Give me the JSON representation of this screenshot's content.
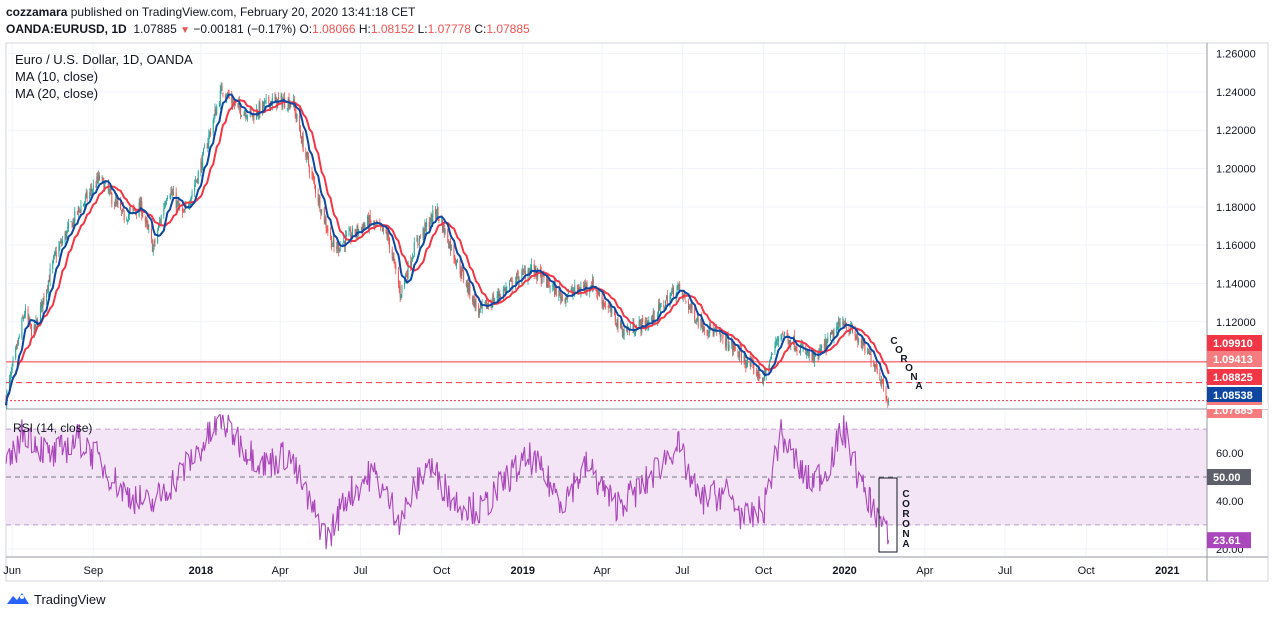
{
  "header": {
    "author": "cozzamara",
    "published_text": "published on TradingView.com, February 20, 2020 13:41:18 CET",
    "symbol": "OANDA:EURUSD, 1D",
    "last": "1.07885",
    "change": "−0.00181 (−0.17%)",
    "o_label": "O:",
    "o_value": "1.08066",
    "h_label": "H:",
    "h_value": "1.08152",
    "l_label": "L:",
    "l_value": "1.07778",
    "c_label": "C:",
    "c_value": "1.07885"
  },
  "legend": {
    "title": "Euro / U.S. Dollar, 1D, OANDA",
    "ma10": "MA (10, close)",
    "ma20": "MA (20, close)",
    "rsi": "RSI (14, close)"
  },
  "annotations": {
    "corona_price": "CORONA",
    "corona_rsi": "CORONA"
  },
  "price_badges": [
    {
      "value": "1.09910",
      "color": "#f23645",
      "text_color": "#ffffff"
    },
    {
      "value": "1.09413",
      "color": "#f77c80",
      "text_color": "#ffffff"
    },
    {
      "value": "1.08825",
      "color": "#f23645",
      "text_color": "#ffffff"
    },
    {
      "value": "1.08538",
      "color": "#0d47a1",
      "text_color": "#ffffff"
    },
    {
      "value": "1.07885",
      "color": "#f77c80",
      "text_color": "#ffffff"
    }
  ],
  "rsi_badges": [
    {
      "value": "50.00",
      "color": "#5d606b",
      "text_color": "#ffffff"
    },
    {
      "value": "23.61",
      "color": "#ab47bc",
      "text_color": "#ffffff"
    }
  ],
  "footer": {
    "brand": "TradingView"
  },
  "colors": {
    "up": "#26a69a",
    "down": "#ef5350",
    "ma10": "#0d47a1",
    "ma20": "#f23645",
    "rsi": "#ab47bc",
    "rsi_band": "#f3e5f5",
    "grid": "#f0f3fa",
    "axis": "#787b86"
  },
  "chart_data": [
    {
      "type": "candlestick",
      "title": "Euro / U.S. Dollar, 1D, OANDA",
      "ylim": [
        1.075,
        1.265
      ],
      "y_ticks": [
        "1.26000",
        "1.24000",
        "1.22000",
        "1.20000",
        "1.18000",
        "1.16000",
        "1.14000",
        "1.12000",
        "1.10000"
      ],
      "x_ticks": [
        "Jun",
        "Sep",
        "2018",
        "Apr",
        "Jul",
        "Oct",
        "2019",
        "Apr",
        "Jul",
        "Oct",
        "2020",
        "Apr",
        "Jul",
        "Oct",
        "2021"
      ],
      "x_range": [
        "2017-05-25",
        "2021-02-15"
      ],
      "anchors": [
        {
          "date": "2017-05-25",
          "close": 1.08
        },
        {
          "date": "2017-06-15",
          "close": 1.125
        },
        {
          "date": "2017-06-25",
          "close": 1.113
        },
        {
          "date": "2017-07-20",
          "close": 1.155
        },
        {
          "date": "2017-08-15",
          "close": 1.178
        },
        {
          "date": "2017-09-08",
          "close": 1.195
        },
        {
          "date": "2017-10-05",
          "close": 1.175
        },
        {
          "date": "2017-10-25",
          "close": 1.18
        },
        {
          "date": "2017-11-08",
          "close": 1.158
        },
        {
          "date": "2017-11-25",
          "close": 1.19
        },
        {
          "date": "2017-12-12",
          "close": 1.175
        },
        {
          "date": "2017-12-31",
          "close": 1.2
        },
        {
          "date": "2018-01-25",
          "close": 1.242
        },
        {
          "date": "2018-02-10",
          "close": 1.232
        },
        {
          "date": "2018-03-01",
          "close": 1.228
        },
        {
          "date": "2018-03-20",
          "close": 1.235
        },
        {
          "date": "2018-04-15",
          "close": 1.235
        },
        {
          "date": "2018-04-28",
          "close": 1.21
        },
        {
          "date": "2018-05-20",
          "close": 1.175
        },
        {
          "date": "2018-06-01",
          "close": 1.158
        },
        {
          "date": "2018-06-15",
          "close": 1.163
        },
        {
          "date": "2018-07-10",
          "close": 1.172
        },
        {
          "date": "2018-08-01",
          "close": 1.165
        },
        {
          "date": "2018-08-15",
          "close": 1.135
        },
        {
          "date": "2018-09-01",
          "close": 1.16
        },
        {
          "date": "2018-09-25",
          "close": 1.178
        },
        {
          "date": "2018-10-15",
          "close": 1.155
        },
        {
          "date": "2018-11-12",
          "close": 1.125
        },
        {
          "date": "2018-12-15",
          "close": 1.138
        },
        {
          "date": "2019-01-10",
          "close": 1.148
        },
        {
          "date": "2019-02-15",
          "close": 1.133
        },
        {
          "date": "2019-03-20",
          "close": 1.14
        },
        {
          "date": "2019-04-25",
          "close": 1.115
        },
        {
          "date": "2019-05-25",
          "close": 1.12
        },
        {
          "date": "2019-06-25",
          "close": 1.138
        },
        {
          "date": "2019-07-20",
          "close": 1.12
        },
        {
          "date": "2019-08-20",
          "close": 1.11
        },
        {
          "date": "2019-09-10",
          "close": 1.1
        },
        {
          "date": "2019-10-01",
          "close": 1.09
        },
        {
          "date": "2019-10-20",
          "close": 1.115
        },
        {
          "date": "2019-11-28",
          "close": 1.1
        },
        {
          "date": "2019-12-31",
          "close": 1.121
        },
        {
          "date": "2020-01-20",
          "close": 1.108
        },
        {
          "date": "2020-02-05",
          "close": 1.098
        },
        {
          "date": "2020-02-20",
          "close": 1.07885
        }
      ],
      "ma10_last": 1.08825,
      "ma20_last": 1.09413,
      "horizontal_lines": [
        {
          "value": 1.0991,
          "style": "solid"
        },
        {
          "value": 1.08825,
          "style": "dashed"
        },
        {
          "value": 1.07885,
          "style": "dotted"
        }
      ],
      "series": [
        {
          "name": "MA (10, close)",
          "color": "#0d47a1"
        },
        {
          "name": "MA (20, close)",
          "color": "#f23645"
        }
      ]
    },
    {
      "type": "line",
      "title": "RSI (14, close)",
      "ylim": [
        17,
        78
      ],
      "y_ticks": [
        "60.00",
        "40.00",
        "20.00"
      ],
      "band": [
        30,
        70
      ],
      "midline": 50,
      "last": 23.61,
      "x_range": [
        "2017-05-25",
        "2021-02-15"
      ],
      "anchors": [
        {
          "date": "2017-05-25",
          "value": 52
        },
        {
          "date": "2017-06-15",
          "value": 70
        },
        {
          "date": "2017-07-15",
          "value": 58
        },
        {
          "date": "2017-08-15",
          "value": 66
        },
        {
          "date": "2017-09-05",
          "value": 58
        },
        {
          "date": "2017-10-05",
          "value": 44
        },
        {
          "date": "2017-11-05",
          "value": 38
        },
        {
          "date": "2017-12-10",
          "value": 52
        },
        {
          "date": "2018-01-25",
          "value": 74
        },
        {
          "date": "2018-02-20",
          "value": 62
        },
        {
          "date": "2018-03-15",
          "value": 55
        },
        {
          "date": "2018-04-10",
          "value": 60
        },
        {
          "date": "2018-05-05",
          "value": 38
        },
        {
          "date": "2018-05-25",
          "value": 24
        },
        {
          "date": "2018-06-15",
          "value": 42
        },
        {
          "date": "2018-07-15",
          "value": 52
        },
        {
          "date": "2018-08-15",
          "value": 32
        },
        {
          "date": "2018-09-15",
          "value": 56
        },
        {
          "date": "2018-10-15",
          "value": 40
        },
        {
          "date": "2018-11-15",
          "value": 36
        },
        {
          "date": "2018-12-15",
          "value": 50
        },
        {
          "date": "2019-01-10",
          "value": 58
        },
        {
          "date": "2019-02-15",
          "value": 40
        },
        {
          "date": "2019-03-15",
          "value": 55
        },
        {
          "date": "2019-04-15",
          "value": 38
        },
        {
          "date": "2019-05-15",
          "value": 45
        },
        {
          "date": "2019-06-25",
          "value": 64
        },
        {
          "date": "2019-07-20",
          "value": 40
        },
        {
          "date": "2019-08-20",
          "value": 44
        },
        {
          "date": "2019-09-10",
          "value": 32
        },
        {
          "date": "2019-10-01",
          "value": 36
        },
        {
          "date": "2019-10-20",
          "value": 68
        },
        {
          "date": "2019-11-20",
          "value": 48
        },
        {
          "date": "2019-12-10",
          "value": 52
        },
        {
          "date": "2019-12-31",
          "value": 70
        },
        {
          "date": "2020-01-20",
          "value": 46
        },
        {
          "date": "2020-02-05",
          "value": 36
        },
        {
          "date": "2020-02-20",
          "value": 23.61
        }
      ]
    }
  ]
}
